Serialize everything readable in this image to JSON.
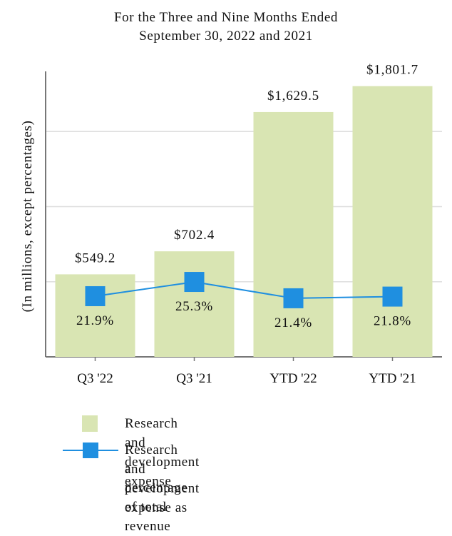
{
  "chart_data": {
    "type": "bar",
    "title": "For the Three and Nine Months Ended",
    "subtitle": "September 30, 2022 and 2021",
    "ylabel": "(In millions, except percentages)",
    "categories": [
      "Q3 '22",
      "Q3 '21",
      "YTD '22",
      "YTD '21"
    ],
    "series": [
      {
        "name": "Research and development expense",
        "type": "bar",
        "values": [
          549.2,
          702.4,
          1629.5,
          1801.7
        ],
        "labels": [
          "$549.2",
          "$702.4",
          "$1,629.5",
          "$1,801.7"
        ],
        "color": "#d9e5b3"
      },
      {
        "name_line1": "Research and development expense as",
        "name_line2": "a percentage of total revenue",
        "type": "line",
        "values": [
          21.9,
          25.3,
          21.4,
          21.8
        ],
        "labels": [
          "21.9%",
          "25.3%",
          "21.4%",
          "21.8%"
        ],
        "color": "#1f8fe0"
      }
    ],
    "ylim": [
      0,
      1900
    ],
    "grid": true,
    "legend_position": "bottom"
  }
}
